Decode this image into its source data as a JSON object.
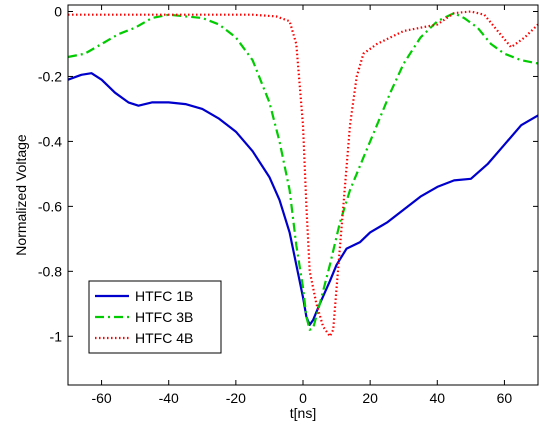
{
  "chart_data": {
    "type": "line",
    "title": "",
    "xlabel": "t[ns]",
    "ylabel": "Normalized Voltage",
    "xlim": [
      -70,
      70
    ],
    "ylim": [
      -1.15,
      0.02
    ],
    "xticks": [
      -60,
      -40,
      -20,
      0,
      20,
      40,
      60
    ],
    "yticks": [
      0,
      -0.2,
      -0.4,
      -0.6,
      -0.8,
      -1
    ],
    "xtick_labels": [
      "-60",
      "-40",
      "-20",
      "0",
      "20",
      "40",
      "60"
    ],
    "ytick_labels": [
      "0",
      "-0.2",
      "-0.4",
      "-0.6",
      "-0.8",
      "-1"
    ],
    "grid": false,
    "legend_position": "bottom-left",
    "series": [
      {
        "name": "HTFC 1B",
        "color": "#0000cc",
        "style": "solid",
        "points": [
          [
            -70,
            -0.21
          ],
          [
            -66,
            -0.195
          ],
          [
            -63,
            -0.19
          ],
          [
            -60,
            -0.21
          ],
          [
            -56,
            -0.25
          ],
          [
            -52,
            -0.28
          ],
          [
            -49,
            -0.29
          ],
          [
            -45,
            -0.28
          ],
          [
            -40,
            -0.28
          ],
          [
            -35,
            -0.285
          ],
          [
            -30,
            -0.3
          ],
          [
            -25,
            -0.33
          ],
          [
            -20,
            -0.37
          ],
          [
            -15,
            -0.43
          ],
          [
            -10,
            -0.51
          ],
          [
            -7,
            -0.58
          ],
          [
            -4,
            -0.68
          ],
          [
            -2,
            -0.78
          ],
          [
            0,
            -0.88
          ],
          [
            1,
            -0.94
          ],
          [
            2,
            -0.965
          ],
          [
            3,
            -0.95
          ],
          [
            5,
            -0.9
          ],
          [
            8,
            -0.83
          ],
          [
            10,
            -0.78
          ],
          [
            13,
            -0.73
          ],
          [
            17,
            -0.71
          ],
          [
            20,
            -0.68
          ],
          [
            25,
            -0.65
          ],
          [
            30,
            -0.61
          ],
          [
            35,
            -0.57
          ],
          [
            40,
            -0.54
          ],
          [
            45,
            -0.52
          ],
          [
            50,
            -0.515
          ],
          [
            55,
            -0.47
          ],
          [
            60,
            -0.41
          ],
          [
            65,
            -0.35
          ],
          [
            70,
            -0.32
          ]
        ]
      },
      {
        "name": "HTFC 3B",
        "color": "#00cc00",
        "style": "dash-dot",
        "points": [
          [
            -70,
            -0.14
          ],
          [
            -65,
            -0.13
          ],
          [
            -60,
            -0.1
          ],
          [
            -55,
            -0.07
          ],
          [
            -50,
            -0.05
          ],
          [
            -45,
            -0.02
          ],
          [
            -40,
            -0.01
          ],
          [
            -35,
            -0.015
          ],
          [
            -30,
            -0.02
          ],
          [
            -25,
            -0.04
          ],
          [
            -20,
            -0.08
          ],
          [
            -15,
            -0.15
          ],
          [
            -10,
            -0.28
          ],
          [
            -7,
            -0.4
          ],
          [
            -4,
            -0.55
          ],
          [
            -2,
            -0.72
          ],
          [
            0,
            -0.85
          ],
          [
            1,
            -0.94
          ],
          [
            2,
            -0.98
          ],
          [
            3,
            -0.975
          ],
          [
            5,
            -0.9
          ],
          [
            8,
            -0.78
          ],
          [
            11,
            -0.65
          ],
          [
            14,
            -0.55
          ],
          [
            18,
            -0.45
          ],
          [
            22,
            -0.35
          ],
          [
            26,
            -0.25
          ],
          [
            30,
            -0.16
          ],
          [
            35,
            -0.08
          ],
          [
            40,
            -0.03
          ],
          [
            45,
            -0.005
          ],
          [
            48,
            -0.02
          ],
          [
            52,
            -0.05
          ],
          [
            56,
            -0.1
          ],
          [
            60,
            -0.13
          ],
          [
            65,
            -0.15
          ],
          [
            70,
            -0.16
          ]
        ]
      },
      {
        "name": "HTFC 4B",
        "color": "#ff0000",
        "style": "dotted",
        "points": [
          [
            -70,
            -0.01
          ],
          [
            -50,
            -0.01
          ],
          [
            -30,
            -0.01
          ],
          [
            -15,
            -0.01
          ],
          [
            -8,
            -0.015
          ],
          [
            -4,
            -0.03
          ],
          [
            -2,
            -0.1
          ],
          [
            0,
            -0.35
          ],
          [
            1,
            -0.6
          ],
          [
            2,
            -0.8
          ],
          [
            4,
            -0.9
          ],
          [
            6,
            -0.97
          ],
          [
            8,
            -1.0
          ],
          [
            9,
            -0.98
          ],
          [
            10,
            -0.85
          ],
          [
            12,
            -0.6
          ],
          [
            14,
            -0.35
          ],
          [
            16,
            -0.2
          ],
          [
            18,
            -0.13
          ],
          [
            22,
            -0.1
          ],
          [
            26,
            -0.08
          ],
          [
            30,
            -0.06
          ],
          [
            35,
            -0.05
          ],
          [
            40,
            -0.04
          ],
          [
            45,
            -0.005
          ],
          [
            50,
            0
          ],
          [
            54,
            -0.01
          ],
          [
            58,
            -0.06
          ],
          [
            62,
            -0.11
          ],
          [
            66,
            -0.08
          ],
          [
            70,
            -0.04
          ]
        ]
      }
    ]
  }
}
